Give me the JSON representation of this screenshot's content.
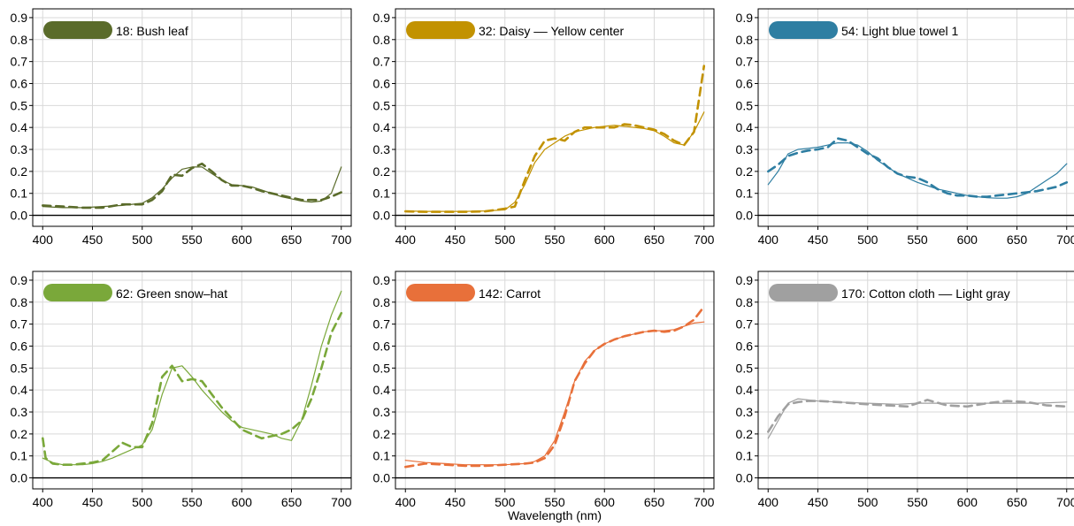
{
  "figure": {
    "xlabel": "Wavelength (nm)"
  },
  "chart_data": [
    {
      "type": "line",
      "label": "18:  Bush leaf",
      "color": "#5a6b2a",
      "xlim": [
        400,
        700
      ],
      "ylim": [
        0.0,
        0.9
      ],
      "xticks": [
        400,
        450,
        500,
        550,
        600,
        650,
        700
      ],
      "yticks": [
        0.0,
        0.1,
        0.2,
        0.3,
        0.4,
        0.5,
        0.6,
        0.7,
        0.8,
        0.9
      ],
      "series": [
        {
          "style": "solid",
          "x": [
            400,
            420,
            440,
            460,
            480,
            500,
            510,
            520,
            530,
            540,
            550,
            560,
            570,
            580,
            590,
            600,
            610,
            620,
            630,
            640,
            650,
            660,
            670,
            680,
            690,
            700
          ],
          "y": [
            0.04,
            0.035,
            0.035,
            0.04,
            0.045,
            0.055,
            0.08,
            0.12,
            0.17,
            0.21,
            0.22,
            0.22,
            0.19,
            0.16,
            0.14,
            0.135,
            0.13,
            0.115,
            0.1,
            0.085,
            0.075,
            0.065,
            0.06,
            0.065,
            0.1,
            0.22
          ]
        },
        {
          "style": "dashed",
          "x": [
            400,
            420,
            440,
            460,
            480,
            500,
            510,
            520,
            530,
            540,
            550,
            560,
            570,
            580,
            590,
            600,
            610,
            620,
            630,
            640,
            650,
            660,
            670,
            680,
            690,
            700
          ],
          "y": [
            0.045,
            0.04,
            0.035,
            0.035,
            0.05,
            0.05,
            0.07,
            0.11,
            0.185,
            0.18,
            0.215,
            0.235,
            0.2,
            0.16,
            0.135,
            0.135,
            0.125,
            0.11,
            0.1,
            0.09,
            0.08,
            0.07,
            0.07,
            0.07,
            0.085,
            0.105
          ]
        }
      ]
    },
    {
      "type": "line",
      "label": "32:  Daisy –– Yellow center",
      "color": "#c29200",
      "xlim": [
        400,
        700
      ],
      "ylim": [
        0.0,
        0.9
      ],
      "xticks": [
        400,
        450,
        500,
        550,
        600,
        650,
        700
      ],
      "yticks": [
        0.0,
        0.1,
        0.2,
        0.3,
        0.4,
        0.5,
        0.6,
        0.7,
        0.8,
        0.9
      ],
      "series": [
        {
          "style": "solid",
          "x": [
            400,
            420,
            440,
            460,
            480,
            500,
            510,
            520,
            530,
            540,
            550,
            560,
            570,
            580,
            590,
            600,
            610,
            620,
            630,
            640,
            650,
            660,
            670,
            680,
            690,
            700
          ],
          "y": [
            0.02,
            0.018,
            0.018,
            0.018,
            0.02,
            0.025,
            0.06,
            0.14,
            0.24,
            0.3,
            0.33,
            0.36,
            0.38,
            0.39,
            0.4,
            0.405,
            0.41,
            0.405,
            0.4,
            0.395,
            0.385,
            0.36,
            0.33,
            0.32,
            0.38,
            0.47
          ]
        },
        {
          "style": "dashed",
          "x": [
            400,
            420,
            440,
            460,
            480,
            500,
            510,
            520,
            530,
            540,
            550,
            560,
            570,
            580,
            590,
            600,
            610,
            620,
            630,
            640,
            650,
            660,
            670,
            680,
            690,
            700
          ],
          "y": [
            0.018,
            0.016,
            0.016,
            0.016,
            0.018,
            0.03,
            0.04,
            0.16,
            0.27,
            0.34,
            0.35,
            0.34,
            0.38,
            0.4,
            0.4,
            0.4,
            0.4,
            0.415,
            0.41,
            0.4,
            0.39,
            0.37,
            0.34,
            0.32,
            0.38,
            0.68
          ]
        }
      ]
    },
    {
      "type": "line",
      "label": "54:  Light blue towel 1",
      "color": "#2e7ea2",
      "xlim": [
        400,
        700
      ],
      "ylim": [
        0.0,
        0.9
      ],
      "xticks": [
        400,
        450,
        500,
        550,
        600,
        650,
        700
      ],
      "yticks": [
        0.0,
        0.1,
        0.2,
        0.3,
        0.4,
        0.5,
        0.6,
        0.7,
        0.8,
        0.9
      ],
      "series": [
        {
          "style": "solid",
          "x": [
            400,
            410,
            420,
            430,
            440,
            450,
            460,
            470,
            480,
            490,
            500,
            510,
            520,
            530,
            540,
            550,
            560,
            570,
            580,
            590,
            600,
            610,
            620,
            630,
            640,
            650,
            660,
            670,
            680,
            690,
            700
          ],
          "y": [
            0.14,
            0.2,
            0.28,
            0.3,
            0.305,
            0.31,
            0.32,
            0.33,
            0.33,
            0.32,
            0.29,
            0.25,
            0.22,
            0.19,
            0.17,
            0.15,
            0.135,
            0.12,
            0.11,
            0.1,
            0.09,
            0.085,
            0.08,
            0.078,
            0.078,
            0.085,
            0.1,
            0.13,
            0.16,
            0.19,
            0.235
          ]
        },
        {
          "style": "dashed",
          "x": [
            400,
            410,
            420,
            430,
            440,
            450,
            460,
            470,
            480,
            490,
            500,
            510,
            520,
            530,
            540,
            550,
            560,
            570,
            580,
            590,
            600,
            610,
            620,
            630,
            640,
            650,
            660,
            670,
            680,
            690,
            700
          ],
          "y": [
            0.2,
            0.23,
            0.27,
            0.285,
            0.295,
            0.3,
            0.31,
            0.35,
            0.34,
            0.31,
            0.28,
            0.26,
            0.22,
            0.19,
            0.175,
            0.17,
            0.15,
            0.12,
            0.1,
            0.09,
            0.09,
            0.085,
            0.085,
            0.09,
            0.095,
            0.1,
            0.105,
            0.11,
            0.12,
            0.13,
            0.15
          ]
        }
      ]
    },
    {
      "type": "line",
      "label": "62:  Green snow–hat",
      "color": "#7aa83a",
      "xlim": [
        400,
        700
      ],
      "ylim": [
        0.0,
        0.9
      ],
      "xticks": [
        400,
        450,
        500,
        550,
        600,
        650,
        700
      ],
      "yticks": [
        0.0,
        0.1,
        0.2,
        0.3,
        0.4,
        0.5,
        0.6,
        0.7,
        0.8,
        0.9
      ],
      "series": [
        {
          "style": "solid",
          "x": [
            400,
            410,
            420,
            430,
            440,
            450,
            460,
            470,
            480,
            490,
            500,
            510,
            520,
            530,
            540,
            550,
            560,
            570,
            580,
            590,
            600,
            610,
            620,
            630,
            640,
            650,
            660,
            670,
            680,
            690,
            700
          ],
          "y": [
            0.09,
            0.07,
            0.06,
            0.06,
            0.06,
            0.065,
            0.075,
            0.09,
            0.11,
            0.13,
            0.15,
            0.22,
            0.38,
            0.5,
            0.51,
            0.46,
            0.4,
            0.35,
            0.3,
            0.26,
            0.23,
            0.22,
            0.21,
            0.2,
            0.18,
            0.17,
            0.26,
            0.42,
            0.6,
            0.74,
            0.85
          ]
        },
        {
          "style": "dashed",
          "x": [
            400,
            403,
            410,
            420,
            430,
            440,
            450,
            460,
            470,
            480,
            490,
            500,
            510,
            520,
            530,
            540,
            550,
            560,
            570,
            580,
            590,
            600,
            610,
            620,
            630,
            640,
            650,
            660,
            670,
            680,
            690,
            700
          ],
          "y": [
            0.18,
            0.09,
            0.065,
            0.06,
            0.06,
            0.065,
            0.07,
            0.08,
            0.12,
            0.16,
            0.14,
            0.14,
            0.25,
            0.46,
            0.51,
            0.44,
            0.45,
            0.44,
            0.38,
            0.32,
            0.27,
            0.22,
            0.2,
            0.18,
            0.19,
            0.2,
            0.22,
            0.26,
            0.36,
            0.5,
            0.66,
            0.75
          ]
        }
      ]
    },
    {
      "type": "line",
      "label": "142:  Carrot",
      "color": "#e8703a",
      "xlim": [
        400,
        700
      ],
      "ylim": [
        0.0,
        0.9
      ],
      "xticks": [
        400,
        450,
        500,
        550,
        600,
        650,
        700
      ],
      "yticks": [
        0.0,
        0.1,
        0.2,
        0.3,
        0.4,
        0.5,
        0.6,
        0.7,
        0.8,
        0.9
      ],
      "series": [
        {
          "style": "solid",
          "x": [
            400,
            420,
            440,
            460,
            480,
            500,
            520,
            530,
            540,
            550,
            560,
            570,
            580,
            590,
            600,
            610,
            620,
            630,
            640,
            650,
            660,
            670,
            680,
            690,
            700
          ],
          "y": [
            0.08,
            0.07,
            0.065,
            0.06,
            0.06,
            0.06,
            0.065,
            0.075,
            0.1,
            0.17,
            0.3,
            0.44,
            0.53,
            0.58,
            0.61,
            0.63,
            0.645,
            0.655,
            0.665,
            0.67,
            0.67,
            0.675,
            0.69,
            0.705,
            0.71
          ]
        },
        {
          "style": "dashed",
          "x": [
            400,
            420,
            440,
            460,
            480,
            500,
            520,
            530,
            540,
            550,
            560,
            570,
            580,
            590,
            600,
            610,
            620,
            630,
            640,
            650,
            660,
            670,
            680,
            690,
            700
          ],
          "y": [
            0.05,
            0.065,
            0.06,
            0.055,
            0.055,
            0.06,
            0.065,
            0.07,
            0.09,
            0.15,
            0.28,
            0.44,
            0.52,
            0.58,
            0.61,
            0.63,
            0.645,
            0.655,
            0.665,
            0.67,
            0.665,
            0.67,
            0.69,
            0.72,
            0.78
          ]
        }
      ]
    },
    {
      "type": "line",
      "label": "170:  Cotton cloth –– Light gray",
      "color": "#a0a0a0",
      "xlim": [
        400,
        700
      ],
      "ylim": [
        0.0,
        0.9
      ],
      "xticks": [
        400,
        450,
        500,
        550,
        600,
        650,
        700
      ],
      "yticks": [
        0.0,
        0.1,
        0.2,
        0.3,
        0.4,
        0.5,
        0.6,
        0.7,
        0.8,
        0.9
      ],
      "series": [
        {
          "style": "solid",
          "x": [
            400,
            410,
            420,
            430,
            440,
            450,
            470,
            500,
            530,
            550,
            570,
            600,
            630,
            650,
            670,
            700
          ],
          "y": [
            0.18,
            0.26,
            0.34,
            0.36,
            0.355,
            0.35,
            0.345,
            0.34,
            0.335,
            0.34,
            0.34,
            0.34,
            0.34,
            0.34,
            0.34,
            0.345
          ]
        },
        {
          "style": "dashed",
          "x": [
            400,
            410,
            420,
            430,
            440,
            450,
            470,
            500,
            520,
            540,
            560,
            580,
            600,
            620,
            640,
            660,
            680,
            700
          ],
          "y": [
            0.21,
            0.28,
            0.335,
            0.345,
            0.35,
            0.35,
            0.345,
            0.335,
            0.33,
            0.325,
            0.355,
            0.33,
            0.325,
            0.34,
            0.35,
            0.345,
            0.33,
            0.325
          ]
        }
      ]
    }
  ]
}
